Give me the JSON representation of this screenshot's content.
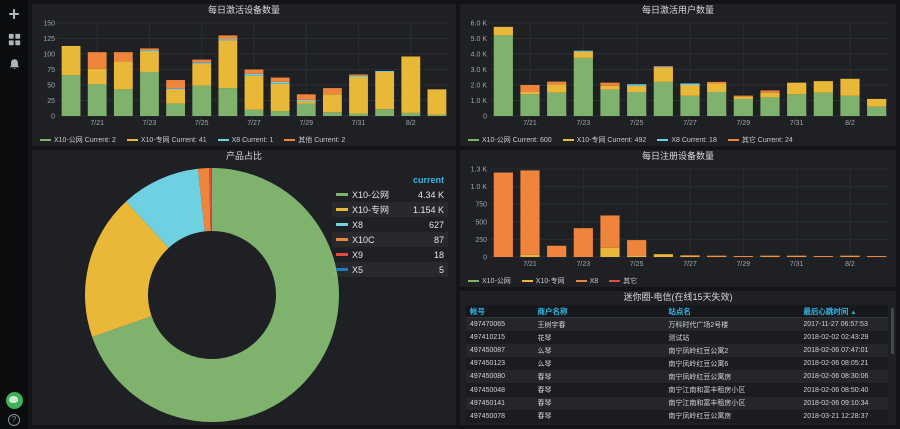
{
  "colors": {
    "green": "#7EB26D",
    "yellow": "#EAB839",
    "cyan": "#6ED0E0",
    "orange": "#EF843C",
    "red": "#E24D42",
    "blue": "#1F78C1",
    "accent_blue": "#33B5E5",
    "page_bg": "#131417",
    "panel_bg": "#1E2024",
    "grid": "#2A2D32",
    "text": "#D8D9DA",
    "text_dim": "#9FA7B3"
  },
  "sidebar": {
    "top_icons": [
      {
        "name": "plus-icon"
      },
      {
        "name": "dashboards-icon"
      },
      {
        "name": "alerting-bell-icon"
      }
    ],
    "bottom_icons": [
      {
        "name": "user-avatar"
      },
      {
        "name": "help-icon",
        "glyph": "?"
      }
    ]
  },
  "panels": {
    "p1": {
      "title": "每日激活设备数量",
      "current_word": "Current:",
      "legend": [
        {
          "label": "X10-公网",
          "current": "2",
          "color": "green"
        },
        {
          "label": "X10-专网",
          "current": "41",
          "color": "yellow"
        },
        {
          "label": "X8",
          "current": "1",
          "color": "cyan"
        },
        {
          "label": "其他",
          "current": "2",
          "color": "orange"
        }
      ]
    },
    "p2": {
      "title": "每日激活用户数量",
      "current_word": "Current:",
      "legend": [
        {
          "label": "X10-公网",
          "current": "600",
          "color": "green"
        },
        {
          "label": "X10-专网",
          "current": "492",
          "color": "yellow"
        },
        {
          "label": "X8",
          "current": "18",
          "color": "cyan"
        },
        {
          "label": "其它",
          "current": "24",
          "color": "orange"
        }
      ]
    },
    "p3": {
      "title": "产品占比",
      "legend_header": "current",
      "legend": [
        {
          "label": "X10-公网",
          "value": "4.34 K",
          "color": "green"
        },
        {
          "label": "X10-专网",
          "value": "1.154 K",
          "color": "yellow"
        },
        {
          "label": "X8",
          "value": "627",
          "color": "cyan"
        },
        {
          "label": "X10C",
          "value": "87",
          "color": "orange"
        },
        {
          "label": "X9",
          "value": "18",
          "color": "red"
        },
        {
          "label": "X5",
          "value": "5",
          "color": "blue"
        }
      ]
    },
    "p4": {
      "title": "每日注册设备数量",
      "legend": [
        {
          "label": "X10-公网",
          "color": "green"
        },
        {
          "label": "X10-专网",
          "color": "yellow"
        },
        {
          "label": "X8",
          "color": "orange"
        },
        {
          "label": "其它",
          "color": "red"
        }
      ]
    },
    "p5": {
      "title": "迷你圈-电信(在线15天失效)",
      "headers": [
        "帐号",
        "商户名称",
        "站点名",
        "最后心跳时间"
      ],
      "sort_arrow": "▲",
      "sorted_column_index": 3,
      "rows": [
        [
          "497470065",
          "王树宇春",
          "万科时代广场2号楼",
          "2017-11-27 06:57:53"
        ],
        [
          "497410215",
          "花琴",
          "测试站",
          "2018-02-02 02:43:29"
        ],
        [
          "497450087",
          "么琴",
          "南宁凤岭红豆公寓2",
          "2018-02-06 07:47:01"
        ],
        [
          "497450123",
          "么琴",
          "南宁凤岭红豆公寓6",
          "2018-02-06 08:05:21"
        ],
        [
          "497450080",
          "春琴",
          "南宁凤岭红豆公寓房",
          "2018-02-06 08:30:06"
        ],
        [
          "497450048",
          "春琴",
          "南宁江南和富丰租房小区",
          "2018-02-06 08:50:40"
        ],
        [
          "497450141",
          "春琴",
          "南宁江南和富丰租房小区",
          "2018-02-06 09:10:34"
        ],
        [
          "497450078",
          "春琴",
          "南宁凤岭红豆公寓房",
          "2018-03-21 12:28:37"
        ]
      ]
    }
  },
  "chart_data": [
    {
      "id": "daily_activated_devices",
      "type": "bar",
      "stacked": true,
      "title": "每日激活设备数量",
      "x": [
        "7/20",
        "7/21",
        "7/22",
        "7/23",
        "7/24",
        "7/25",
        "7/26",
        "7/27",
        "7/28",
        "7/29",
        "7/30",
        "7/31",
        "8/1",
        "8/2",
        "8/3"
      ],
      "x_tick_labels": [
        "7/21",
        "7/23",
        "7/25",
        "7/27",
        "7/29",
        "7/31",
        "8/2"
      ],
      "x_tick_indices": [
        1,
        3,
        5,
        7,
        9,
        11,
        13
      ],
      "ylim": [
        0,
        150
      ],
      "y_tick_values": [
        0,
        25,
        50,
        75,
        100,
        125,
        150
      ],
      "y_tick_labels": [
        "0",
        "25",
        "50",
        "75",
        "100",
        "125",
        "150"
      ],
      "grid": true,
      "legend_position": "bottom",
      "series": [
        {
          "name": "X10-公网",
          "color": "green",
          "values": [
            66,
            51,
            43,
            71,
            20,
            49,
            45,
            10,
            8,
            20,
            6,
            4,
            11,
            5,
            2
          ]
        },
        {
          "name": "X10-专网",
          "color": "yellow",
          "values": [
            47,
            25,
            45,
            33,
            22,
            35,
            77,
            55,
            44,
            4,
            29,
            59,
            60,
            91,
            41
          ]
        },
        {
          "name": "X8",
          "color": "cyan",
          "values": [
            0,
            0,
            0,
            2,
            2,
            2,
            2,
            3,
            3,
            2,
            0,
            2,
            1,
            0,
            0
          ]
        },
        {
          "name": "其他",
          "color": "orange",
          "values": [
            0,
            27,
            15,
            3,
            14,
            5,
            6,
            7,
            7,
            9,
            10,
            2,
            0,
            0,
            0
          ]
        }
      ]
    },
    {
      "id": "daily_activated_users",
      "type": "bar",
      "stacked": true,
      "title": "每日激活用户数量",
      "x": [
        "7/20",
        "7/21",
        "7/22",
        "7/23",
        "7/24",
        "7/25",
        "7/26",
        "7/27",
        "7/28",
        "7/29",
        "7/30",
        "7/31",
        "8/1",
        "8/2",
        "8/3"
      ],
      "x_tick_labels": [
        "7/21",
        "7/23",
        "7/25",
        "7/27",
        "7/29",
        "7/31",
        "8/2"
      ],
      "x_tick_indices": [
        1,
        3,
        5,
        7,
        9,
        11,
        13
      ],
      "ylim": [
        0,
        6000
      ],
      "y_tick_values": [
        0,
        1000,
        2000,
        3000,
        4000,
        5000,
        6000
      ],
      "y_tick_labels": [
        "0",
        "1.0 K",
        "2.0 K",
        "3.0 K",
        "4.0 K",
        "5.0 K",
        "6.0 K"
      ],
      "grid": true,
      "legend_position": "bottom",
      "series": [
        {
          "name": "X10-公网",
          "color": "green",
          "values": [
            5200,
            1400,
            1500,
            3750,
            1700,
            1550,
            2200,
            1300,
            1550,
            1100,
            1200,
            1400,
            1500,
            1300,
            600
          ]
        },
        {
          "name": "X10-专网",
          "color": "yellow",
          "values": [
            550,
            150,
            550,
            400,
            250,
            400,
            900,
            700,
            550,
            150,
            300,
            750,
            750,
            1100,
            500
          ]
        },
        {
          "name": "X8",
          "color": "cyan",
          "values": [
            0,
            0,
            0,
            50,
            0,
            100,
            50,
            100,
            0,
            0,
            0,
            0,
            0,
            0,
            0
          ]
        },
        {
          "name": "其它",
          "color": "orange",
          "values": [
            0,
            450,
            170,
            0,
            200,
            0,
            50,
            0,
            100,
            50,
            150,
            0,
            0,
            0,
            0
          ]
        }
      ]
    },
    {
      "id": "product_share",
      "type": "pie",
      "donut": true,
      "title": "产品占比",
      "labels": [
        "X10-公网",
        "X10-专网",
        "X8",
        "X10C",
        "X9",
        "X5"
      ],
      "values": [
        4340,
        1154,
        627,
        87,
        18,
        5
      ],
      "display_values": [
        "4.34 K",
        "1.154 K",
        "627",
        "87",
        "18",
        "5"
      ],
      "colors": [
        "green",
        "yellow",
        "cyan",
        "orange",
        "red",
        "blue"
      ],
      "legend_header": "current",
      "legend_position": "right",
      "start_angle_deg": -90,
      "direction": "clockwise"
    },
    {
      "id": "daily_registered_devices",
      "type": "bar",
      "stacked": true,
      "title": "每日注册设备数量",
      "x": [
        "7/20",
        "7/21",
        "7/22",
        "7/23",
        "7/24",
        "7/25",
        "7/26",
        "7/27",
        "7/28",
        "7/29",
        "7/30",
        "7/31",
        "8/1",
        "8/2",
        "8/3"
      ],
      "x_tick_labels": [
        "7/21",
        "7/23",
        "7/25",
        "7/27",
        "7/29",
        "7/31",
        "8/2"
      ],
      "x_tick_indices": [
        1,
        3,
        5,
        7,
        9,
        11,
        13
      ],
      "ylim": [
        0,
        1250
      ],
      "y_tick_values": [
        0,
        250,
        500,
        750,
        1000,
        1250
      ],
      "y_tick_labels": [
        "0",
        "250",
        "500",
        "750",
        "1.0 K",
        "1.3 K"
      ],
      "grid": true,
      "legend_position": "bottom",
      "series": [
        {
          "name": "X10-公网",
          "color": "green",
          "values": [
            0,
            0,
            0,
            0,
            0,
            0,
            0,
            0,
            0,
            0,
            0,
            0,
            0,
            0,
            0
          ]
        },
        {
          "name": "X10-专网",
          "color": "yellow",
          "values": [
            0,
            30,
            0,
            0,
            130,
            20,
            40,
            10,
            5,
            0,
            5,
            5,
            0,
            5,
            0
          ]
        },
        {
          "name": "X8",
          "color": "orange",
          "values": [
            1200,
            1200,
            160,
            410,
            460,
            220,
            0,
            5,
            10,
            5,
            5,
            5,
            5,
            5,
            5
          ]
        },
        {
          "name": "其它",
          "color": "red",
          "values": [
            0,
            0,
            0,
            0,
            0,
            0,
            0,
            0,
            0,
            0,
            0,
            0,
            0,
            0,
            0
          ]
        }
      ]
    }
  ]
}
